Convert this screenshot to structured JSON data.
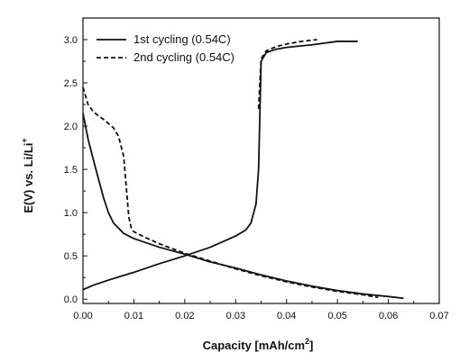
{
  "chart_data": {
    "type": "line",
    "xlabel": "Capacity [mAh/cm",
    "xlabel_sup": "2",
    "xlabel_end": "]",
    "ylabel": "E(V) vs. Li/Li",
    "ylabel_sup": "+",
    "xlim": [
      0.0,
      0.07
    ],
    "ylim": [
      -0.05,
      3.25
    ],
    "x_ticks": [
      "0.00",
      "0.01",
      "0.02",
      "0.03",
      "0.04",
      "0.05",
      "0.06",
      "0.07"
    ],
    "y_ticks": [
      "0.0",
      "0.5",
      "1.0",
      "1.5",
      "2.0",
      "2.5",
      "3.0"
    ],
    "grid": false,
    "legend_position": "top-left",
    "series": [
      {
        "name": "1st cycling (0.54C)",
        "style": "solid",
        "color": "#111111",
        "segments": [
          {
            "x": [
              0.0,
              0.001,
              0.002,
              0.003,
              0.004,
              0.005,
              0.006,
              0.008,
              0.01,
              0.012,
              0.015,
              0.02,
              0.025,
              0.03,
              0.035,
              0.04,
              0.045,
              0.05,
              0.055,
              0.06,
              0.063
            ],
            "y": [
              2.15,
              1.85,
              1.62,
              1.4,
              1.18,
              1.0,
              0.88,
              0.76,
              0.7,
              0.66,
              0.6,
              0.52,
              0.43,
              0.36,
              0.28,
              0.21,
              0.15,
              0.1,
              0.06,
              0.03,
              0.01
            ]
          },
          {
            "x": [
              0.0,
              0.002,
              0.005,
              0.01,
              0.015,
              0.02,
              0.025,
              0.03,
              0.032,
              0.033,
              0.034,
              0.0345,
              0.035,
              0.036,
              0.038,
              0.04,
              0.045,
              0.05,
              0.054
            ],
            "y": [
              0.11,
              0.16,
              0.22,
              0.31,
              0.41,
              0.5,
              0.6,
              0.73,
              0.8,
              0.88,
              1.1,
              1.5,
              2.75,
              2.85,
              2.89,
              2.91,
              2.94,
              2.98,
              2.98
            ]
          }
        ]
      },
      {
        "name": "2nd cycling (0.54C)",
        "style": "dashed",
        "color": "#111111",
        "segments": [
          {
            "x": [
              0.0,
              0.001,
              0.002,
              0.003,
              0.004,
              0.005,
              0.006,
              0.007,
              0.008,
              0.0085,
              0.009,
              0.0095,
              0.01,
              0.012,
              0.015,
              0.02,
              0.025,
              0.03,
              0.035,
              0.04,
              0.045,
              0.05,
              0.055,
              0.058
            ],
            "y": [
              2.45,
              2.25,
              2.17,
              2.12,
              2.08,
              2.03,
              1.98,
              1.88,
              1.65,
              1.3,
              0.95,
              0.82,
              0.78,
              0.72,
              0.64,
              0.53,
              0.44,
              0.35,
              0.27,
              0.2,
              0.14,
              0.09,
              0.05,
              0.02
            ]
          },
          {
            "x": [
              0.0345,
              0.035,
              0.036,
              0.038,
              0.04,
              0.043,
              0.046
            ],
            "y": [
              2.2,
              2.78,
              2.87,
              2.92,
              2.95,
              2.98,
              3.0
            ]
          }
        ]
      }
    ]
  }
}
